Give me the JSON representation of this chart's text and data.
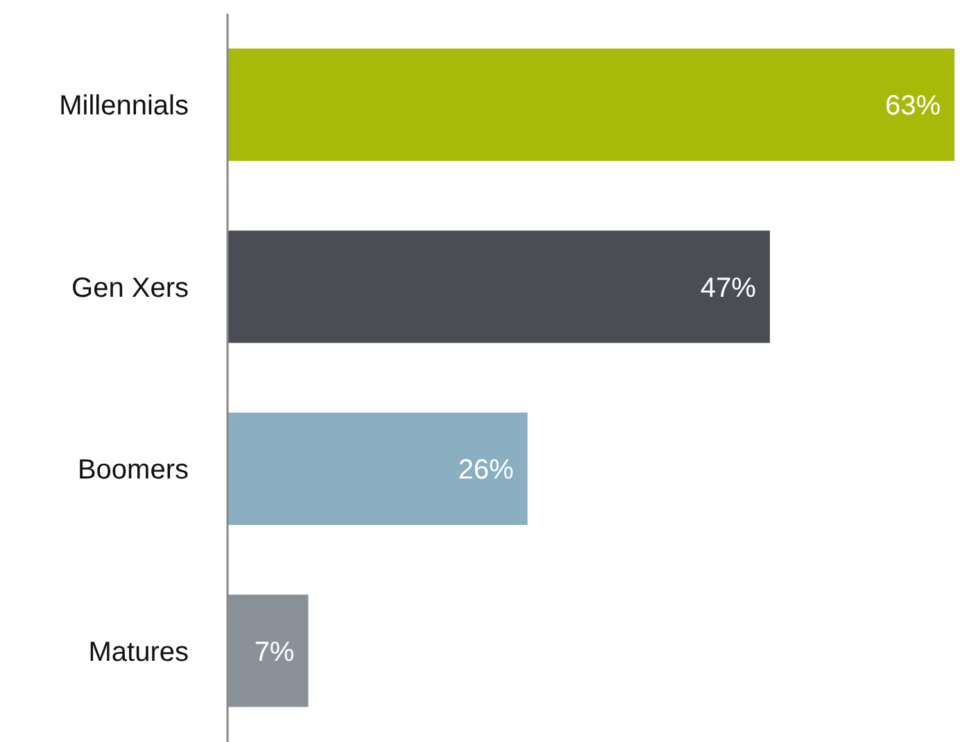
{
  "chart_data": {
    "type": "bar",
    "orientation": "horizontal",
    "categories": [
      "Millennials",
      "Gen Xers",
      "Boomers",
      "Matures"
    ],
    "values": [
      63,
      47,
      26,
      7
    ],
    "colors": [
      "#a8b90a",
      "#4a4e54",
      "#89afc0",
      "#8a9199"
    ],
    "value_labels": [
      "63%",
      "47%",
      "26%",
      "7%"
    ],
    "grid": false,
    "legend": false
  }
}
